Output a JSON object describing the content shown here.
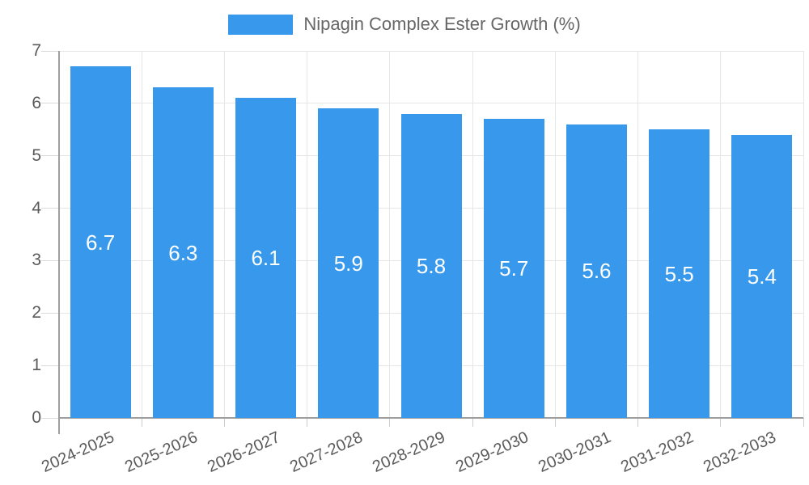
{
  "chart_data": {
    "type": "bar",
    "title": "Nipagin Complex Ester Growth (%)",
    "legend": {
      "position": "top",
      "label": "Nipagin Complex Ester Growth (%)"
    },
    "categories": [
      "2024-2025",
      "2025-2026",
      "2026-2027",
      "2027-2028",
      "2028-2029",
      "2029-2030",
      "2030-2031",
      "2031-2032",
      "2032-2033"
    ],
    "series": [
      {
        "name": "Nipagin Complex Ester Growth (%)",
        "values": [
          6.7,
          6.3,
          6.1,
          5.9,
          5.8,
          5.7,
          5.6,
          5.5,
          5.4
        ]
      }
    ],
    "value_labels": [
      "6.7",
      "6.3",
      "6.1",
      "5.9",
      "5.8",
      "5.7",
      "5.6",
      "5.5",
      "5.4"
    ],
    "xlabel": "",
    "ylabel": "",
    "ylim": [
      0,
      7
    ],
    "yticks": [
      "0",
      "1",
      "2",
      "3",
      "4",
      "5",
      "6",
      "7"
    ],
    "grid": true,
    "colors": {
      "bar": "#3899ec",
      "bar_value_text": "#ffffff",
      "gridline": "#e6e6e6",
      "axis": "#9e9e9e",
      "tick_text": "#5a5a5a",
      "legend_text": "#666666"
    }
  }
}
